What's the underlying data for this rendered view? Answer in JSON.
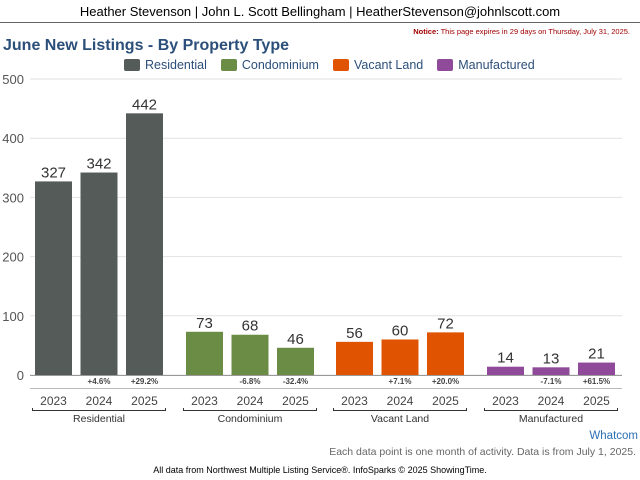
{
  "header": {
    "text": "Heather Stevenson | John L. Scott Bellingham | HeatherStevenson@johnlscott.com"
  },
  "notice": {
    "label": "Notice:",
    "text": "This page expires in 29 days on Thursday, July 31, 2025."
  },
  "footer": {
    "region_link": "Whatcom",
    "note": "Each data point is one month of activity. Data is from July 1, 2025.",
    "source": "All data from Northwest Multiple Listing Service®. InfoSparks © 2025 ShowingTime."
  },
  "chart_data": {
    "type": "bar",
    "title": "June New Listings - By Property Type",
    "xlabel": "",
    "ylabel": "",
    "ylim": [
      0,
      500
    ],
    "yticks": [
      0,
      100,
      200,
      300,
      400,
      500
    ],
    "grid": true,
    "legend_position": "top",
    "years": [
      "2023",
      "2024",
      "2025"
    ],
    "series": [
      {
        "name": "Residential",
        "color": "#545b58",
        "values": [
          327,
          342,
          442
        ],
        "changes": [
          "",
          "+4.6%",
          "+29.2%"
        ]
      },
      {
        "name": "Condominium",
        "color": "#6a8c44",
        "values": [
          73,
          68,
          46
        ],
        "changes": [
          "",
          "-6.8%",
          "-32.4%"
        ]
      },
      {
        "name": "Vacant Land",
        "color": "#e05300",
        "values": [
          56,
          60,
          72
        ],
        "changes": [
          "",
          "+7.1%",
          "+20.0%"
        ]
      },
      {
        "name": "Manufactured",
        "color": "#8f4b99",
        "values": [
          14,
          13,
          21
        ],
        "changes": [
          "",
          "-7.1%",
          "+61.5%"
        ]
      }
    ]
  }
}
